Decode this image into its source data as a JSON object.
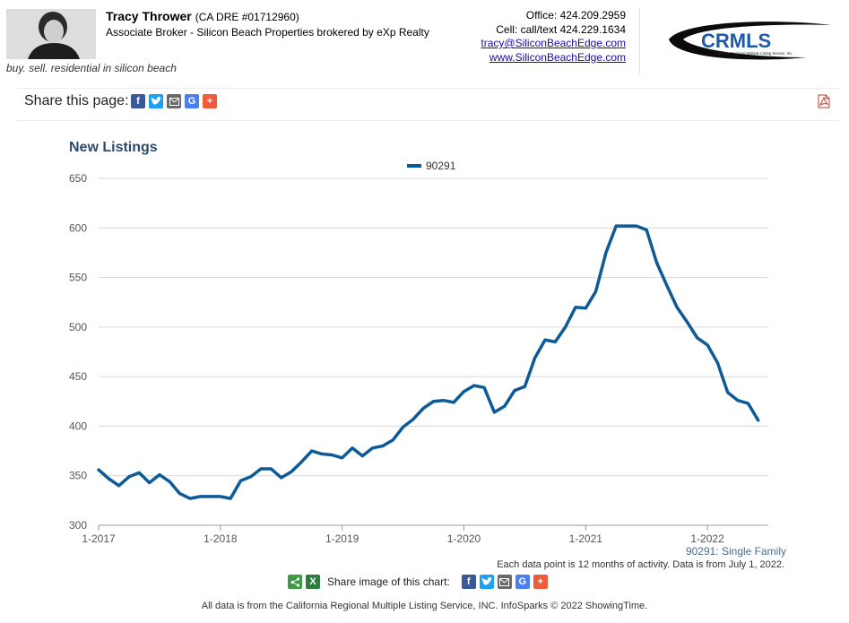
{
  "agent": {
    "name": "Tracy Thrower",
    "dre": "(CA DRE #01712960)",
    "title": "Associate Broker - Silicon Beach Properties brokered by eXp Realty",
    "tagline": "buy. sell. residential in silicon beach"
  },
  "contact": {
    "office": "Office: 424.209.2959",
    "cell": "Cell: call/text 424.229.1634",
    "email": "tracy@SiliconBeachEdge.com",
    "website": "www.SiliconBeachEdge.com"
  },
  "logo": {
    "text": "CRMLS",
    "subtext": "California Regional Multiple Listing Service, Inc."
  },
  "share_page": {
    "label": "Share this page:",
    "icons": [
      "facebook-icon",
      "twitter-icon",
      "email-icon",
      "google-icon",
      "plus-icon"
    ]
  },
  "pdf_icon": "pdf-icon",
  "colors": {
    "series": "#0e5a96",
    "title": "#2c4b6f",
    "grid": "#d7d7d7"
  },
  "chart_data": {
    "type": "line",
    "title": "New Listings",
    "ylim": [
      300,
      650
    ],
    "yticks": [
      300,
      350,
      400,
      450,
      500,
      550,
      600,
      650
    ],
    "x_tick_labels": [
      "1-2017",
      "1-2018",
      "1-2019",
      "1-2020",
      "1-2021",
      "1-2022"
    ],
    "x_start": "2017-01",
    "x_end": "2022-06",
    "grid": true,
    "legend_position": "top-center",
    "series": [
      {
        "name": "90291",
        "color": "#0e5a96",
        "values": [
          356,
          347,
          340,
          349,
          353,
          343,
          351,
          344,
          332,
          327,
          329,
          329,
          329,
          327,
          345,
          349,
          357,
          357,
          348,
          354,
          364,
          375,
          372,
          371,
          368,
          378,
          370,
          378,
          380,
          386,
          399,
          407,
          418,
          425,
          426,
          424,
          435,
          441,
          439,
          414,
          420,
          436,
          440,
          469,
          487,
          485,
          500,
          520,
          519,
          536,
          575,
          602,
          602,
          602,
          598,
          565,
          542,
          520,
          505,
          489,
          482,
          464,
          434,
          426,
          423,
          406
        ]
      }
    ]
  },
  "footnote": {
    "series_label": "90291: Single Family",
    "data_note": "Each data point is 12 months of activity. Data is from July 1, 2022."
  },
  "share_image": {
    "label": "Share image of this chart:",
    "icons": [
      "share-icon",
      "excel-icon",
      "facebook-icon",
      "twitter-icon",
      "email-icon",
      "google-icon",
      "plus-icon"
    ]
  },
  "footer": "All data is from the California Regional Multiple Listing Service, INC. InfoSparks © 2022 ShowingTime."
}
